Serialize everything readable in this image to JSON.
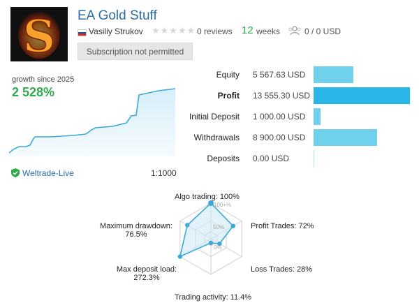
{
  "header": {
    "title": "EA Gold Stuff",
    "logo_letter": "S",
    "author": "Vasiliy Strukov",
    "reviews": "0 reviews",
    "rating_stars": 0,
    "weeks_number": "12",
    "weeks_label": "weeks",
    "subscribers": "0 / 0 USD",
    "subscription_button": "Subscription not permitted"
  },
  "growth": {
    "label": "growth since 2025",
    "value": "2 528%"
  },
  "stats": [
    {
      "label": "Equity",
      "value": "5 567.63 USD",
      "amount": 5567.63
    },
    {
      "label": "Profit",
      "value": "13 555.30 USD",
      "amount": 13555.3
    },
    {
      "label": "Initial Deposit",
      "value": "1 000.00 USD",
      "amount": 1000.0
    },
    {
      "label": "Withdrawals",
      "value": "8 900.00 USD",
      "amount": 8900.0
    },
    {
      "label": "Deposits",
      "value": "0.00 USD",
      "amount": 0
    }
  ],
  "footer": {
    "server": "Weltrade-Live",
    "leverage": "1:1000"
  },
  "radar": {
    "labels": {
      "algo": "Algo trading: 100%",
      "profit_trades": "Profit Trades: 72%",
      "loss_trades": "Loss Trades: 28%",
      "trading_activity": "Trading activity: 11.4%",
      "max_deposit_load_1": "Max deposit load:",
      "max_deposit_load_2": "272.3%",
      "max_drawdown_1": "Maximum drawdown:",
      "max_drawdown_2": "76.5%"
    },
    "scale_labels": [
      "100+%",
      "50%",
      "0%"
    ],
    "values": [
      100,
      72,
      28,
      11.4,
      100,
      76.5
    ]
  },
  "colors": {
    "title": "#2b6da6",
    "growth": "#2faa4c",
    "bar": "#6fd1ec",
    "bar_active": "#29b6e6",
    "line": "#3aa9d8"
  }
}
